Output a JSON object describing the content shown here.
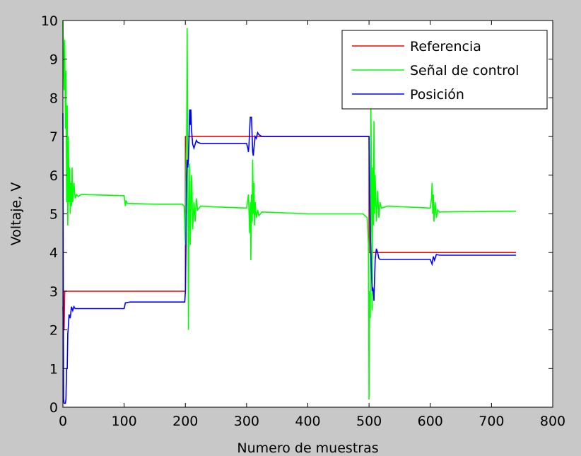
{
  "chart_data": {
    "type": "line",
    "title": "",
    "xlabel": "Numero de muestras",
    "ylabel": "Voltaje, V",
    "xlim": [
      0,
      800
    ],
    "ylim": [
      0,
      10
    ],
    "xticks": [
      0,
      100,
      200,
      300,
      400,
      500,
      600,
      700,
      800
    ],
    "yticks": [
      0,
      1,
      2,
      3,
      4,
      5,
      6,
      7,
      8,
      9,
      10
    ],
    "grid": false,
    "legend_position": "top-right",
    "series": [
      {
        "name": "Referencia",
        "color": "#ff0000",
        "points": [
          [
            0,
            2.6
          ],
          [
            1,
            2.0
          ],
          [
            2,
            2.0
          ],
          [
            3,
            3.0
          ],
          [
            200,
            3.0
          ],
          [
            200,
            7.0
          ],
          [
            500,
            7.0
          ],
          [
            500,
            4.0
          ],
          [
            740,
            4.0
          ]
        ]
      },
      {
        "name": "Señal de control",
        "color": "#00ff00",
        "points": [
          [
            0,
            10.0
          ],
          [
            2,
            8.2
          ],
          [
            3,
            9.5
          ],
          [
            4,
            7.2
          ],
          [
            5,
            8.7
          ],
          [
            6,
            5.3
          ],
          [
            7,
            7.8
          ],
          [
            8,
            4.7
          ],
          [
            9,
            7.0
          ],
          [
            10,
            5.3
          ],
          [
            11,
            6.2
          ],
          [
            12,
            5.0
          ],
          [
            13,
            5.8
          ],
          [
            14,
            5.2
          ],
          [
            15,
            6.2
          ],
          [
            16,
            5.3
          ],
          [
            18,
            5.8
          ],
          [
            20,
            5.4
          ],
          [
            22,
            5.5
          ],
          [
            25,
            5.45
          ],
          [
            30,
            5.5
          ],
          [
            100,
            5.47
          ],
          [
            102,
            5.2
          ],
          [
            103,
            5.35
          ],
          [
            105,
            5.27
          ],
          [
            150,
            5.25
          ],
          [
            195,
            5.25
          ],
          [
            198,
            5.2
          ],
          [
            200,
            4.2
          ],
          [
            201,
            6.2
          ],
          [
            202,
            7.0
          ],
          [
            203,
            9.8
          ],
          [
            204,
            6.5
          ],
          [
            205,
            2.0
          ],
          [
            206,
            5.0
          ],
          [
            207,
            6.3
          ],
          [
            208,
            4.2
          ],
          [
            209,
            5.0
          ],
          [
            210,
            6.0
          ],
          [
            211,
            5.5
          ],
          [
            212,
            4.6
          ],
          [
            214,
            5.3
          ],
          [
            216,
            4.8
          ],
          [
            218,
            5.4
          ],
          [
            220,
            5.1
          ],
          [
            225,
            5.2
          ],
          [
            250,
            5.18
          ],
          [
            300,
            5.15
          ],
          [
            303,
            5.5
          ],
          [
            305,
            4.5
          ],
          [
            306,
            5.3
          ],
          [
            307,
            3.8
          ],
          [
            308,
            5.5
          ],
          [
            309,
            4.8
          ],
          [
            310,
            6.4
          ],
          [
            311,
            5.0
          ],
          [
            312,
            5.8
          ],
          [
            313,
            4.7
          ],
          [
            314,
            5.3
          ],
          [
            316,
            4.9
          ],
          [
            318,
            5.1
          ],
          [
            320,
            4.95
          ],
          [
            325,
            5.05
          ],
          [
            400,
            5.0
          ],
          [
            490,
            5.0
          ],
          [
            497,
            4.9
          ],
          [
            499,
            4.2
          ],
          [
            500,
            0.2
          ],
          [
            501,
            3.0
          ],
          [
            502,
            2.3
          ],
          [
            503,
            7.8
          ],
          [
            504,
            6.0
          ],
          [
            505,
            2.5
          ],
          [
            506,
            6.2
          ],
          [
            507,
            4.7
          ],
          [
            508,
            7.4
          ],
          [
            509,
            5.0
          ],
          [
            510,
            6.0
          ],
          [
            512,
            4.8
          ],
          [
            514,
            5.6
          ],
          [
            516,
            4.9
          ],
          [
            518,
            5.3
          ],
          [
            520,
            5.15
          ],
          [
            530,
            5.2
          ],
          [
            600,
            5.15
          ],
          [
            602,
            5.4
          ],
          [
            603,
            5.8
          ],
          [
            604,
            5.0
          ],
          [
            605,
            5.5
          ],
          [
            606,
            4.8
          ],
          [
            608,
            5.3
          ],
          [
            610,
            4.9
          ],
          [
            612,
            5.1
          ],
          [
            615,
            5.05
          ],
          [
            740,
            5.07
          ]
        ]
      },
      {
        "name": "Posición",
        "color": "#0000ff",
        "points": [
          [
            0,
            7.6
          ],
          [
            1,
            0.2
          ],
          [
            2,
            0.1
          ],
          [
            4,
            0.1
          ],
          [
            5,
            0.2
          ],
          [
            6,
            1.0
          ],
          [
            7,
            1.0
          ],
          [
            8,
            1.9
          ],
          [
            9,
            2.1
          ],
          [
            10,
            2.4
          ],
          [
            12,
            2.3
          ],
          [
            14,
            2.6
          ],
          [
            16,
            2.5
          ],
          [
            18,
            2.6
          ],
          [
            20,
            2.55
          ],
          [
            30,
            2.55
          ],
          [
            60,
            2.55
          ],
          [
            100,
            2.55
          ],
          [
            102,
            2.7
          ],
          [
            110,
            2.72
          ],
          [
            199,
            2.72
          ],
          [
            200,
            3.0
          ],
          [
            201,
            4.1
          ],
          [
            202,
            5.9
          ],
          [
            203,
            6.4
          ],
          [
            204,
            6.2
          ],
          [
            205,
            6.4
          ],
          [
            206,
            6.9
          ],
          [
            207,
            7.7
          ],
          [
            208,
            7.3
          ],
          [
            209,
            7.7
          ],
          [
            210,
            7.2
          ],
          [
            212,
            6.8
          ],
          [
            214,
            6.7
          ],
          [
            216,
            6.8
          ],
          [
            218,
            6.9
          ],
          [
            220,
            6.85
          ],
          [
            225,
            6.82
          ],
          [
            300,
            6.82
          ],
          [
            302,
            6.7
          ],
          [
            303,
            6.6
          ],
          [
            304,
            6.8
          ],
          [
            306,
            7.5
          ],
          [
            308,
            7.5
          ],
          [
            310,
            6.6
          ],
          [
            311,
            6.5
          ],
          [
            312,
            6.7
          ],
          [
            314,
            7.0
          ],
          [
            316,
            6.95
          ],
          [
            318,
            7.1
          ],
          [
            320,
            7.05
          ],
          [
            325,
            7.0
          ],
          [
            400,
            7.0
          ],
          [
            500,
            7.0
          ],
          [
            501,
            5.5
          ],
          [
            502,
            4.5
          ],
          [
            503,
            4.0
          ],
          [
            504,
            3.5
          ],
          [
            505,
            3.0
          ],
          [
            506,
            3.1
          ],
          [
            507,
            3.0
          ],
          [
            508,
            2.75
          ],
          [
            509,
            3.3
          ],
          [
            510,
            3.8
          ],
          [
            512,
            4.1
          ],
          [
            514,
            4.0
          ],
          [
            516,
            3.85
          ],
          [
            518,
            3.82
          ],
          [
            600,
            3.82
          ],
          [
            603,
            3.7
          ],
          [
            605,
            3.9
          ],
          [
            607,
            3.8
          ],
          [
            610,
            3.95
          ],
          [
            615,
            3.93
          ],
          [
            740,
            3.93
          ]
        ]
      }
    ]
  }
}
